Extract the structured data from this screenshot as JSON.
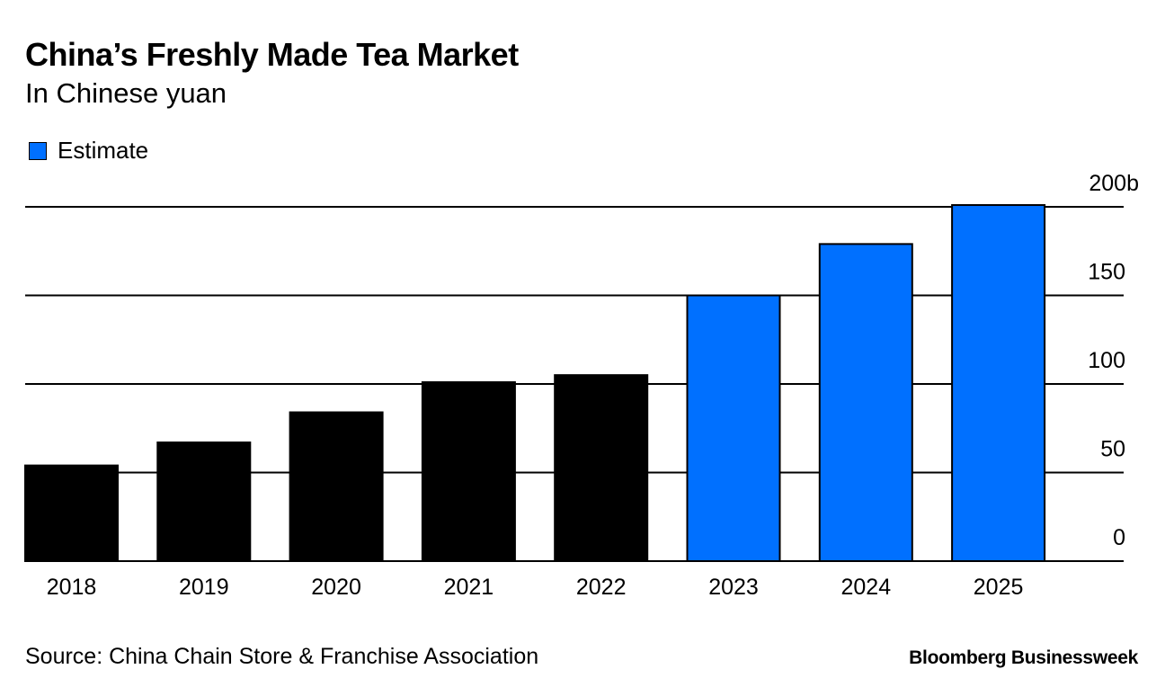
{
  "chart_data": {
    "type": "bar",
    "title": "China’s Freshly Made Tea Market",
    "subtitle": "In Chinese yuan",
    "categories": [
      "2018",
      "2019",
      "2020",
      "2021",
      "2022",
      "2023",
      "2024",
      "2025"
    ],
    "values": [
      54,
      67,
      84,
      101,
      105,
      150,
      179,
      201
    ],
    "estimate": [
      false,
      false,
      false,
      false,
      false,
      true,
      true,
      true
    ],
    "legend": [
      {
        "label": "Estimate",
        "color": "#0070ff"
      }
    ],
    "actual_color": "#000000",
    "yticks": [
      0,
      50,
      100,
      150,
      200
    ],
    "ytick_labels": [
      "0",
      "50",
      "100",
      "150",
      "200b"
    ],
    "ylim": [
      0,
      200
    ],
    "yaxis_position": "right",
    "grid": true,
    "xlabel": "",
    "ylabel": ""
  },
  "source": "Source: China Chain Store & Franchise Association",
  "brand": "Bloomberg Businessweek"
}
